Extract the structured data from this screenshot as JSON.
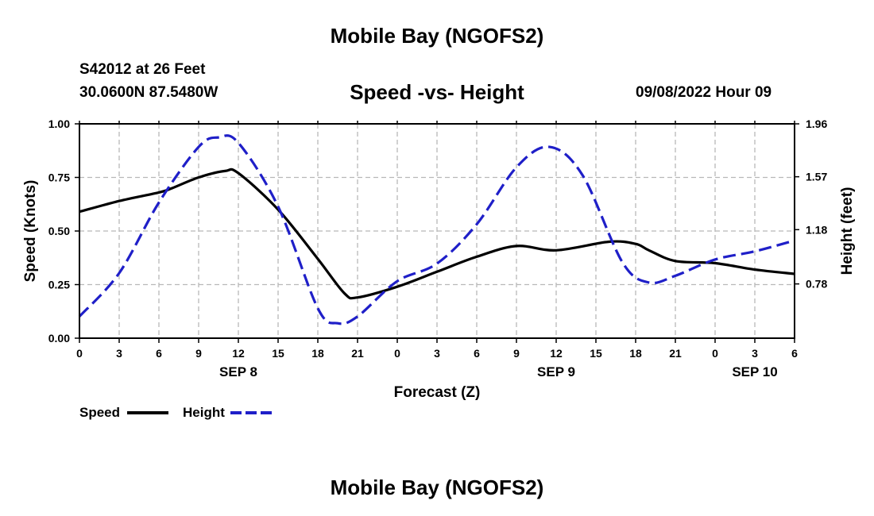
{
  "header": {
    "title": "Mobile Bay (NGOFS2)",
    "station": "S42012 at 26 Feet",
    "coords": "30.0600N  87.5480W",
    "subtitle": "Speed -vs- Height",
    "datetime": "09/08/2022 Hour 09"
  },
  "footer": {
    "title": "Mobile Bay (NGOFS2)"
  },
  "chart_data": {
    "type": "line",
    "title": "Speed -vs- Height",
    "xlabel": "Forecast (Z)",
    "ylabel": "Speed (Knots)",
    "y2label": "Height (feet)",
    "x_ticks": [
      "0",
      "3",
      "6",
      "9",
      "12",
      "15",
      "18",
      "21",
      "0",
      "3",
      "6",
      "9",
      "12",
      "15",
      "18",
      "21",
      "0",
      "3",
      "6"
    ],
    "x_range": [
      0,
      54
    ],
    "day_labels": [
      {
        "label": "SEP 8",
        "x": 12
      },
      {
        "label": "SEP 9",
        "x": 36
      },
      {
        "label": "SEP 10",
        "x": 51
      }
    ],
    "y_ticks": [
      "0.00",
      "0.25",
      "0.50",
      "0.75",
      "1.00"
    ],
    "ylim": [
      0,
      1
    ],
    "y2_ticks": [
      "0.78",
      "1.18",
      "1.57",
      "1.96"
    ],
    "y2_tick_values": [
      0.78,
      1.18,
      1.57,
      1.96
    ],
    "y2lim": [
      0.38,
      1.96
    ],
    "grid": true,
    "legend_position": "bottom-left",
    "series": [
      {
        "name": "Speed",
        "axis": "left",
        "color": "#000000",
        "dash": "solid",
        "x": [
          0,
          3,
          6,
          7,
          9,
          11,
          12,
          15,
          18,
          20,
          21,
          24,
          27,
          30,
          33,
          36,
          40,
          42,
          43,
          45,
          48,
          51,
          54
        ],
        "y": [
          0.59,
          0.64,
          0.68,
          0.7,
          0.75,
          0.78,
          0.77,
          0.6,
          0.37,
          0.21,
          0.19,
          0.24,
          0.31,
          0.38,
          0.43,
          0.41,
          0.45,
          0.44,
          0.41,
          0.36,
          0.35,
          0.32,
          0.3
        ]
      },
      {
        "name": "Height",
        "axis": "right",
        "color": "#1f1fc8",
        "dash": "dashed",
        "x": [
          0,
          3,
          6,
          9,
          10.5,
          12,
          15,
          18,
          19.5,
          21,
          24,
          27,
          30,
          33,
          35.5,
          38,
          41,
          43,
          45,
          48,
          51,
          54
        ],
        "y": [
          0.54,
          0.86,
          1.38,
          1.79,
          1.86,
          1.82,
          1.35,
          0.6,
          0.49,
          0.54,
          0.8,
          0.93,
          1.22,
          1.64,
          1.79,
          1.58,
          0.94,
          0.79,
          0.84,
          0.96,
          1.02,
          1.1
        ]
      }
    ]
  }
}
